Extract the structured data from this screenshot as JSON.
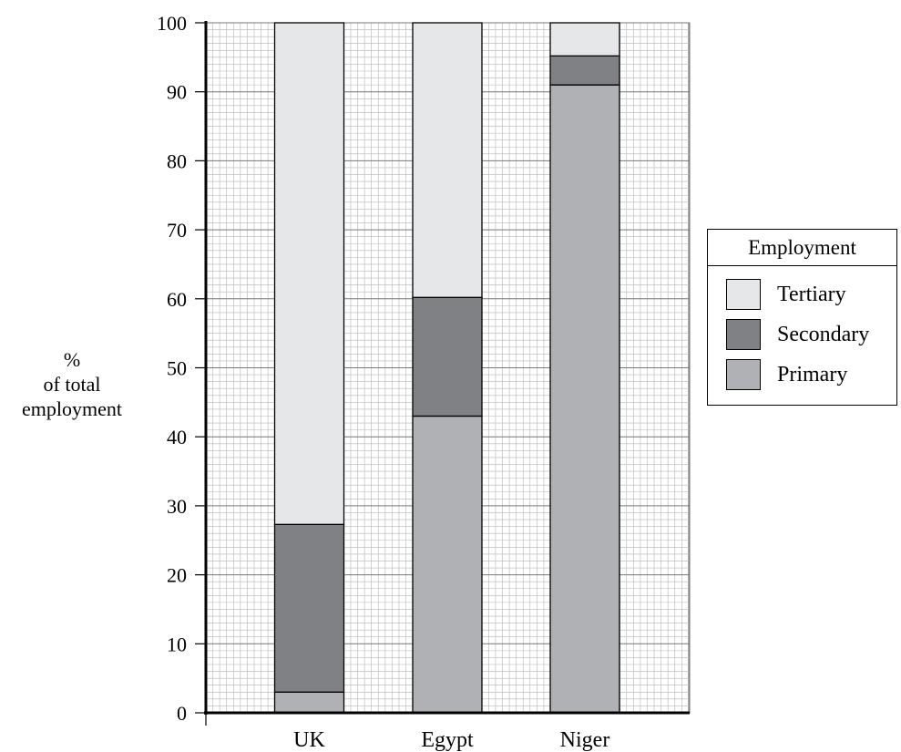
{
  "chart_data": {
    "type": "bar",
    "stacked": true,
    "categories": [
      "UK",
      "Egypt",
      "Niger"
    ],
    "series": [
      {
        "name": "Primary",
        "values": [
          3,
          43,
          91
        ],
        "color": "#b0b1b4"
      },
      {
        "name": "Secondary",
        "values": [
          24.3,
          17.2,
          4.2
        ],
        "color": "#808184"
      },
      {
        "name": "Tertiary",
        "values": [
          72.7,
          39.8,
          4.8
        ],
        "color": "#e6e7e8"
      }
    ],
    "ylabel": [
      "%",
      "of total",
      "employment"
    ],
    "ylim": [
      0,
      100
    ],
    "yticks": [
      0,
      10,
      20,
      30,
      40,
      50,
      60,
      70,
      80,
      90,
      100
    ],
    "grid": true,
    "legend": {
      "title": "Employment",
      "placement": "right",
      "entries": [
        "Tertiary",
        "Secondary",
        "Primary"
      ]
    }
  }
}
